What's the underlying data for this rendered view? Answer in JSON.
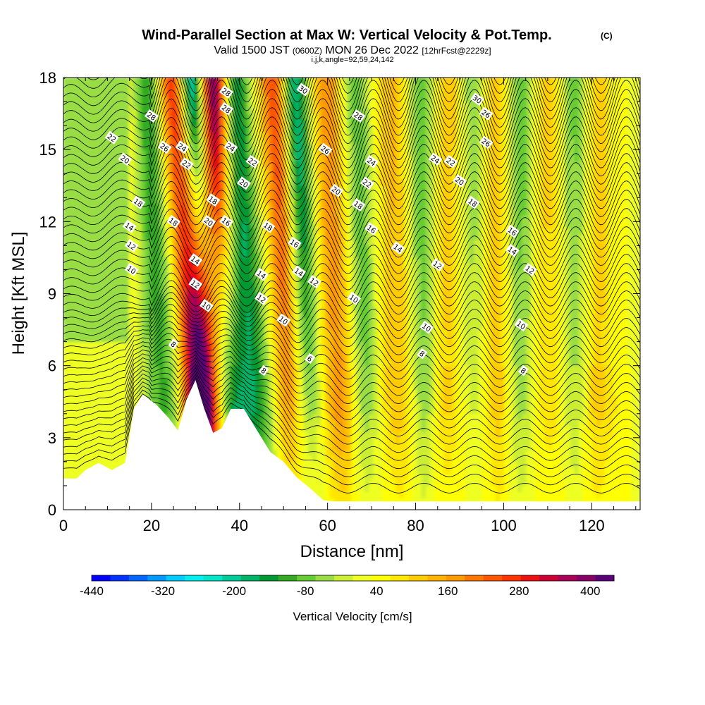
{
  "header": {
    "title": "Wind-Parallel Section at Max W: Vertical Velocity & Pot.Temp.",
    "copyright": "(C)",
    "valid_prefix": "Valid 1500 JST",
    "valid_utc": "(0600Z)",
    "valid_date": "MON 26 Dec 2022",
    "forecast": "[12hrFcst@2229z]",
    "params": "i,j,k,angle=92,59,24,142"
  },
  "chart_data": {
    "type": "heatmap",
    "title": "Wind-Parallel Section at Max W: Vertical Velocity & Pot.Temp.",
    "xlabel": "Distance [nm]",
    "ylabel": "Height [Kft MSL]",
    "xlim": [
      0,
      131
    ],
    "ylim": [
      0,
      18
    ],
    "x_ticks": [
      0,
      20,
      40,
      60,
      80,
      100,
      120
    ],
    "y_ticks": [
      0,
      3,
      6,
      9,
      12,
      15,
      18
    ],
    "colorbar": {
      "label": "Vertical Velocity [cm/s]",
      "tick_labels": [
        "-440",
        "-320",
        "-200",
        "-80",
        "40",
        "160",
        "280",
        "400"
      ],
      "tick_values": [
        -440,
        -320,
        -200,
        -80,
        40,
        160,
        280,
        400
      ],
      "range": [
        -440,
        440
      ],
      "colors": [
        "#0000ff",
        "#0033ff",
        "#0066ff",
        "#0099ff",
        "#00ccff",
        "#00f0f0",
        "#00e6c8",
        "#00cc99",
        "#00b366",
        "#009933",
        "#33aa22",
        "#66cc33",
        "#99dd44",
        "#ccee33",
        "#eeff22",
        "#ffff00",
        "#ffe600",
        "#ffcc00",
        "#ffb300",
        "#ff9900",
        "#ff7700",
        "#ff5500",
        "#ff3300",
        "#ee1111",
        "#cc0033",
        "#aa0055",
        "#880066",
        "#5a0078"
      ]
    },
    "terrain_kft": [
      [
        0,
        1.3
      ],
      [
        3,
        1.3
      ],
      [
        5,
        1.65
      ],
      [
        8,
        1.95
      ],
      [
        11,
        1.65
      ],
      [
        14,
        1.95
      ],
      [
        16,
        4.2
      ],
      [
        18,
        4.8
      ],
      [
        21,
        4.4
      ],
      [
        24,
        3.8
      ],
      [
        26,
        3.3
      ],
      [
        28,
        4.6
      ],
      [
        30,
        5.4
      ],
      [
        32,
        4.2
      ],
      [
        34,
        3.2
      ],
      [
        36,
        3.4
      ],
      [
        38,
        4.2
      ],
      [
        41,
        4.2
      ],
      [
        44,
        3.3
      ],
      [
        47,
        2.4
      ],
      [
        50,
        2.0
      ],
      [
        53,
        1.35
      ],
      [
        56,
        0.9
      ],
      [
        59,
        0.4
      ],
      [
        61,
        0.35
      ],
      [
        131,
        0.35
      ]
    ],
    "updraft_bands": [
      {
        "x_top": 34,
        "x_base": 33,
        "w": 420
      },
      {
        "x_top": 25,
        "x_base": 33,
        "w": 300
      },
      {
        "x_top": 48,
        "x_base": 54,
        "w": 280
      },
      {
        "x_top": 60,
        "x_base": 63,
        "w": 170
      },
      {
        "x_top": 75,
        "x_base": 76,
        "w": 120
      },
      {
        "x_top": 88,
        "x_base": 88,
        "w": 110
      },
      {
        "x_top": 98,
        "x_base": 98,
        "w": 110
      },
      {
        "x_top": 110,
        "x_base": 110,
        "w": 100
      },
      {
        "x_top": 122,
        "x_base": 121,
        "w": 90
      }
    ],
    "downdraft_bands": [
      {
        "x_top": 29,
        "x_base": 38,
        "w": -330
      },
      {
        "x_top": 39,
        "x_base": 45,
        "w": -180
      },
      {
        "x_top": 52,
        "x_base": 56,
        "w": -250
      },
      {
        "x_top": 19,
        "x_base": 25,
        "w": -140
      },
      {
        "x_top": 66,
        "x_base": 70,
        "w": -100
      },
      {
        "x_top": 81,
        "x_base": 82,
        "w": -100
      },
      {
        "x_top": 93,
        "x_base": 93,
        "w": -100
      },
      {
        "x_top": 104,
        "x_base": 105,
        "w": -100
      },
      {
        "x_top": 116,
        "x_base": 116,
        "w": -90
      }
    ],
    "theta_contour_labels": [
      {
        "text": "22",
        "x": 11,
        "y": 15.5
      },
      {
        "text": "20",
        "x": 14,
        "y": 14.6
      },
      {
        "text": "18",
        "x": 17,
        "y": 12.8
      },
      {
        "text": "14",
        "x": 15,
        "y": 11.8
      },
      {
        "text": "12",
        "x": 15.5,
        "y": 11.0
      },
      {
        "text": "10",
        "x": 15.5,
        "y": 10.0
      },
      {
        "text": "28",
        "x": 20,
        "y": 16.4
      },
      {
        "text": "26",
        "x": 23,
        "y": 15.1
      },
      {
        "text": "24",
        "x": 27,
        "y": 15.1
      },
      {
        "text": "22",
        "x": 28,
        "y": 14.4
      },
      {
        "text": "18",
        "x": 25,
        "y": 12.0
      },
      {
        "text": "14",
        "x": 30,
        "y": 10.4
      },
      {
        "text": "12",
        "x": 30,
        "y": 9.4
      },
      {
        "text": "10",
        "x": 32.5,
        "y": 8.5
      },
      {
        "text": "8",
        "x": 25,
        "y": 6.9
      },
      {
        "text": "28",
        "x": 37,
        "y": 17.4
      },
      {
        "text": "28",
        "x": 37,
        "y": 16.7
      },
      {
        "text": "24",
        "x": 38,
        "y": 15.1
      },
      {
        "text": "20",
        "x": 33,
        "y": 12.0
      },
      {
        "text": "18",
        "x": 34,
        "y": 12.9
      },
      {
        "text": "16",
        "x": 37,
        "y": 12.0
      },
      {
        "text": "22",
        "x": 43,
        "y": 14.5
      },
      {
        "text": "20",
        "x": 41,
        "y": 13.6
      },
      {
        "text": "18",
        "x": 46.5,
        "y": 11.8
      },
      {
        "text": "16",
        "x": 52.5,
        "y": 11.1
      },
      {
        "text": "14",
        "x": 45,
        "y": 9.8
      },
      {
        "text": "14",
        "x": 53.5,
        "y": 9.9
      },
      {
        "text": "12",
        "x": 45,
        "y": 8.8
      },
      {
        "text": "12",
        "x": 57,
        "y": 9.5
      },
      {
        "text": "10",
        "x": 50,
        "y": 7.9
      },
      {
        "text": "8",
        "x": 45.5,
        "y": 5.8
      },
      {
        "text": "6",
        "x": 56,
        "y": 6.3
      },
      {
        "text": "30",
        "x": 54.5,
        "y": 17.5
      },
      {
        "text": "26",
        "x": 59.5,
        "y": 15.0
      },
      {
        "text": "20",
        "x": 62,
        "y": 13.3
      },
      {
        "text": "28",
        "x": 67,
        "y": 16.4
      },
      {
        "text": "24",
        "x": 70,
        "y": 14.5
      },
      {
        "text": "22",
        "x": 69,
        "y": 13.6
      },
      {
        "text": "18",
        "x": 67,
        "y": 12.7
      },
      {
        "text": "16",
        "x": 70,
        "y": 11.7
      },
      {
        "text": "14",
        "x": 76,
        "y": 10.9
      },
      {
        "text": "12",
        "x": 85,
        "y": 10.2
      },
      {
        "text": "10",
        "x": 66,
        "y": 8.8
      },
      {
        "text": "10",
        "x": 82.5,
        "y": 7.6
      },
      {
        "text": "8",
        "x": 81.5,
        "y": 6.5
      },
      {
        "text": "30",
        "x": 94,
        "y": 17.1
      },
      {
        "text": "26",
        "x": 96,
        "y": 16.5
      },
      {
        "text": "26",
        "x": 96,
        "y": 15.3
      },
      {
        "text": "24",
        "x": 84.5,
        "y": 14.6
      },
      {
        "text": "22",
        "x": 88,
        "y": 14.5
      },
      {
        "text": "20",
        "x": 90,
        "y": 13.7
      },
      {
        "text": "18",
        "x": 93,
        "y": 12.8
      },
      {
        "text": "16",
        "x": 102,
        "y": 11.6
      },
      {
        "text": "14",
        "x": 102,
        "y": 10.8
      },
      {
        "text": "12",
        "x": 106,
        "y": 10.0
      },
      {
        "text": "10",
        "x": 104,
        "y": 7.7
      },
      {
        "text": "8",
        "x": 104.5,
        "y": 5.8
      }
    ]
  }
}
